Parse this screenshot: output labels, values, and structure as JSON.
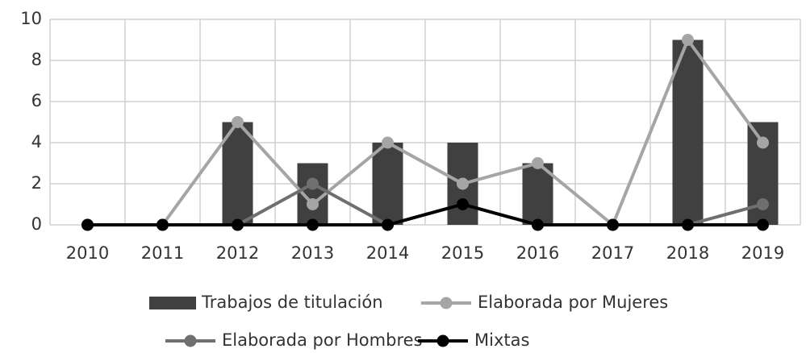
{
  "chart_data": {
    "type": "bar",
    "categories": [
      "2010",
      "2011",
      "2012",
      "2013",
      "2014",
      "2015",
      "2016",
      "2017",
      "2018",
      "2019"
    ],
    "series": [
      {
        "name": "Trabajos de titulación",
        "type": "bar",
        "color": "#404040",
        "values": [
          0,
          0,
          5,
          3,
          4,
          4,
          3,
          0,
          9,
          5
        ]
      },
      {
        "name": "Elaborada por Mujeres",
        "type": "line",
        "color": "#a5a5a5",
        "values": [
          0,
          0,
          5,
          1,
          4,
          2,
          3,
          0,
          9,
          4
        ]
      },
      {
        "name": "Elaborada por Hombres",
        "type": "line",
        "color": "#6f6f6f",
        "values": [
          0,
          0,
          0,
          2,
          0,
          1,
          0,
          0,
          0,
          1
        ]
      },
      {
        "name": "Mixtas",
        "type": "line",
        "color": "#000000",
        "values": [
          0,
          0,
          0,
          0,
          0,
          1,
          0,
          0,
          0,
          0
        ]
      }
    ],
    "ylim": [
      0,
      10
    ],
    "yticks": [
      0,
      2,
      4,
      6,
      8,
      10
    ],
    "grid": true,
    "legend": "bottom"
  }
}
